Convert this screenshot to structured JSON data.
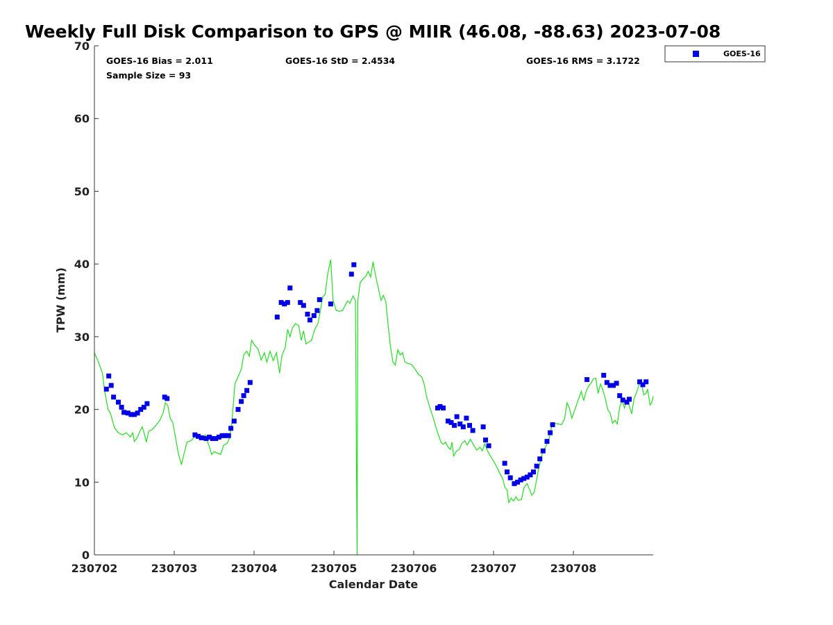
{
  "chart_data": {
    "type": "scatter",
    "title": "Weekly Full Disk Comparison to GPS @ MIIR (46.08, -88.63) 2023-07-08",
    "xlabel": "Calendar Date",
    "ylabel": "TPW (mm)",
    "xlim": [
      0,
      7
    ],
    "ylim": [
      0,
      70
    ],
    "xticks": [
      0,
      1,
      2,
      3,
      4,
      5,
      6
    ],
    "xtick_labels": [
      "230702",
      "230703",
      "230704",
      "230705",
      "230706",
      "230707",
      "230708"
    ],
    "yticks": [
      0,
      10,
      20,
      30,
      40,
      50,
      60,
      70
    ],
    "ytick_labels": [
      "0",
      "10",
      "20",
      "30",
      "40",
      "50",
      "60",
      "70"
    ],
    "grid": false,
    "legend_position": "top-right",
    "stats": {
      "bias": "GOES-16 Bias = 2.011",
      "std": "GOES-16 StD = 2.4534",
      "rms": "GOES-16 RMS = 3.1722",
      "sample_size": "Sample Size = 93"
    },
    "colors": {
      "goes16": "#0000e6",
      "gps": "#22dd22"
    },
    "series": [
      {
        "name": "GOES-16",
        "style": "square-markers",
        "points": [
          [
            0.15,
            22.8
          ],
          [
            0.18,
            24.6
          ],
          [
            0.21,
            23.3
          ],
          [
            0.24,
            21.7
          ],
          [
            0.3,
            21
          ],
          [
            0.34,
            20.3
          ],
          [
            0.37,
            19.6
          ],
          [
            0.42,
            19.5
          ],
          [
            0.46,
            19.3
          ],
          [
            0.5,
            19.3
          ],
          [
            0.54,
            19.5
          ],
          [
            0.58,
            20
          ],
          [
            0.62,
            20.3
          ],
          [
            0.66,
            20.8
          ],
          [
            0.88,
            21.7
          ],
          [
            0.91,
            21.5
          ],
          [
            1.26,
            16.5
          ],
          [
            1.3,
            16.3
          ],
          [
            1.34,
            16.1
          ],
          [
            1.4,
            16
          ],
          [
            1.44,
            16.2
          ],
          [
            1.48,
            16
          ],
          [
            1.52,
            16
          ],
          [
            1.56,
            16.2
          ],
          [
            1.6,
            16.4
          ],
          [
            1.64,
            16.4
          ],
          [
            1.68,
            16.4
          ],
          [
            1.71,
            17.4
          ],
          [
            1.75,
            18.4
          ],
          [
            1.8,
            20
          ],
          [
            1.84,
            21.1
          ],
          [
            1.87,
            21.9
          ],
          [
            1.91,
            22.6
          ],
          [
            1.95,
            23.7
          ],
          [
            2.29,
            32.7
          ],
          [
            2.34,
            34.7
          ],
          [
            2.38,
            34.5
          ],
          [
            2.42,
            34.7
          ],
          [
            2.45,
            36.7
          ],
          [
            2.58,
            34.7
          ],
          [
            2.62,
            34.3
          ],
          [
            2.67,
            33.1
          ],
          [
            2.7,
            32.3
          ],
          [
            2.75,
            32.9
          ],
          [
            2.79,
            33.6
          ],
          [
            2.82,
            35.1
          ],
          [
            2.96,
            34.5
          ],
          [
            3.22,
            38.6
          ],
          [
            3.25,
            39.9
          ],
          [
            4.3,
            20.2
          ],
          [
            4.33,
            20.4
          ],
          [
            4.37,
            20.2
          ],
          [
            4.43,
            18.4
          ],
          [
            4.47,
            18.2
          ],
          [
            4.51,
            17.8
          ],
          [
            4.54,
            19
          ],
          [
            4.58,
            18
          ],
          [
            4.62,
            17.6
          ],
          [
            4.66,
            18.8
          ],
          [
            4.7,
            17.8
          ],
          [
            4.74,
            17.1
          ],
          [
            4.87,
            17.6
          ],
          [
            4.9,
            15.8
          ],
          [
            4.94,
            15
          ],
          [
            5.14,
            12.6
          ],
          [
            5.17,
            11.4
          ],
          [
            5.21,
            10.6
          ],
          [
            5.26,
            9.8
          ],
          [
            5.3,
            10
          ],
          [
            5.34,
            10.3
          ],
          [
            5.38,
            10.5
          ],
          [
            5.42,
            10.7
          ],
          [
            5.46,
            11
          ],
          [
            5.5,
            11.4
          ],
          [
            5.54,
            12.2
          ],
          [
            5.58,
            13.2
          ],
          [
            5.62,
            14.3
          ],
          [
            5.67,
            15.6
          ],
          [
            5.71,
            16.8
          ],
          [
            5.74,
            17.9
          ],
          [
            6.17,
            24.1
          ],
          [
            6.38,
            24.7
          ],
          [
            6.42,
            23.7
          ],
          [
            6.46,
            23.3
          ],
          [
            6.5,
            23.3
          ],
          [
            6.54,
            23.6
          ],
          [
            6.58,
            21.9
          ],
          [
            6.62,
            21.3
          ],
          [
            6.67,
            21
          ],
          [
            6.7,
            21.4
          ],
          [
            6.83,
            23.8
          ],
          [
            6.87,
            23.4
          ],
          [
            6.91,
            23.8
          ]
        ]
      },
      {
        "style": "line",
        "points": [
          [
            0,
            27.8
          ],
          [
            0.05,
            26.5
          ],
          [
            0.1,
            25
          ],
          [
            0.13,
            22.5
          ],
          [
            0.17,
            20
          ],
          [
            0.2,
            19.5
          ],
          [
            0.25,
            17.5
          ],
          [
            0.3,
            16.8
          ],
          [
            0.35,
            16.5
          ],
          [
            0.4,
            16.8
          ],
          [
            0.45,
            16.2
          ],
          [
            0.48,
            16.8
          ],
          [
            0.5,
            15.6
          ],
          [
            0.53,
            16
          ],
          [
            0.57,
            17
          ],
          [
            0.6,
            17.6
          ],
          [
            0.63,
            16.5
          ],
          [
            0.65,
            15.5
          ],
          [
            0.68,
            17
          ],
          [
            0.72,
            17.2
          ],
          [
            0.77,
            17.8
          ],
          [
            0.82,
            18.5
          ],
          [
            0.86,
            19.5
          ],
          [
            0.89,
            20.9
          ],
          [
            0.92,
            20.5
          ],
          [
            0.95,
            18.7
          ],
          [
            0.98,
            18.3
          ],
          [
            1.01,
            16.5
          ],
          [
            1.05,
            14
          ],
          [
            1.09,
            12.4
          ],
          [
            1.12,
            13.8
          ],
          [
            1.16,
            15.5
          ],
          [
            1.21,
            15.7
          ],
          [
            1.26,
            16.3
          ],
          [
            1.31,
            16.5
          ],
          [
            1.35,
            16.2
          ],
          [
            1.39,
            16.5
          ],
          [
            1.43,
            15.2
          ],
          [
            1.47,
            13.8
          ],
          [
            1.5,
            14.2
          ],
          [
            1.54,
            14
          ],
          [
            1.58,
            13.8
          ],
          [
            1.62,
            15.1
          ],
          [
            1.66,
            15.3
          ],
          [
            1.69,
            16
          ],
          [
            1.72,
            18
          ],
          [
            1.76,
            23.5
          ],
          [
            1.8,
            24.5
          ],
          [
            1.84,
            25.5
          ],
          [
            1.87,
            27.5
          ],
          [
            1.91,
            28
          ],
          [
            1.94,
            27.3
          ],
          [
            1.97,
            29.5
          ],
          [
            2.01,
            28.8
          ],
          [
            2.05,
            28.3
          ],
          [
            2.09,
            26.8
          ],
          [
            2.13,
            27.8
          ],
          [
            2.16,
            26.5
          ],
          [
            2.2,
            28
          ],
          [
            2.24,
            26.7
          ],
          [
            2.28,
            27.8
          ],
          [
            2.32,
            25
          ],
          [
            2.35,
            27.5
          ],
          [
            2.39,
            28.5
          ],
          [
            2.42,
            31
          ],
          [
            2.45,
            30
          ],
          [
            2.48,
            31.2
          ],
          [
            2.52,
            31.8
          ],
          [
            2.56,
            31.5
          ],
          [
            2.59,
            29.5
          ],
          [
            2.62,
            30.8
          ],
          [
            2.65,
            29
          ],
          [
            2.69,
            29.3
          ],
          [
            2.72,
            29.5
          ],
          [
            2.76,
            31
          ],
          [
            2.8,
            31.8
          ],
          [
            2.83,
            33.5
          ],
          [
            2.86,
            35.5
          ],
          [
            2.89,
            35.8
          ],
          [
            2.92,
            38.5
          ],
          [
            2.96,
            40.6
          ],
          [
            2.99,
            35
          ],
          [
            3.03,
            33.6
          ],
          [
            3.07,
            33.5
          ],
          [
            3.11,
            33.6
          ],
          [
            3.14,
            34.3
          ],
          [
            3.17,
            34.9
          ],
          [
            3.2,
            34.6
          ],
          [
            3.24,
            35.6
          ],
          [
            3.27,
            35
          ],
          [
            3.29,
            0
          ],
          [
            3.3,
            35
          ],
          [
            3.33,
            37.5
          ],
          [
            3.37,
            38
          ],
          [
            3.4,
            38.3
          ],
          [
            3.43,
            39
          ],
          [
            3.46,
            38.2
          ],
          [
            3.49,
            40.3
          ],
          [
            3.52,
            38.5
          ],
          [
            3.56,
            36.5
          ],
          [
            3.59,
            35
          ],
          [
            3.62,
            35.7
          ],
          [
            3.65,
            34.8
          ],
          [
            3.68,
            31.5
          ],
          [
            3.71,
            28.5
          ],
          [
            3.74,
            26.5
          ],
          [
            3.77,
            26.1
          ],
          [
            3.8,
            28.2
          ],
          [
            3.83,
            27.5
          ],
          [
            3.86,
            27.8
          ],
          [
            3.89,
            26.5
          ],
          [
            3.93,
            26.3
          ],
          [
            3.97,
            26.2
          ],
          [
            4.02,
            25.5
          ],
          [
            4.06,
            24.8
          ],
          [
            4.1,
            24.5
          ],
          [
            4.13,
            23.5
          ],
          [
            4.16,
            21.8
          ],
          [
            4.2,
            20.3
          ],
          [
            4.24,
            19
          ],
          [
            4.28,
            17.5
          ],
          [
            4.31,
            16.5
          ],
          [
            4.34,
            15.5
          ],
          [
            4.37,
            15.2
          ],
          [
            4.4,
            15.5
          ],
          [
            4.43,
            14.8
          ],
          [
            4.46,
            14.5
          ],
          [
            4.48,
            15.5
          ],
          [
            4.5,
            13.6
          ],
          [
            4.53,
            14.2
          ],
          [
            4.57,
            14.5
          ],
          [
            4.6,
            15.3
          ],
          [
            4.64,
            15.7
          ],
          [
            4.67,
            15.1
          ],
          [
            4.71,
            15.9
          ],
          [
            4.75,
            15.1
          ],
          [
            4.79,
            14.4
          ],
          [
            4.83,
            14.8
          ],
          [
            4.86,
            14.3
          ],
          [
            4.89,
            15.3
          ],
          [
            4.92,
            14.4
          ],
          [
            4.96,
            13.6
          ],
          [
            5.0,
            12.9
          ],
          [
            5.04,
            12.1
          ],
          [
            5.08,
            11.2
          ],
          [
            5.12,
            10.3
          ],
          [
            5.14,
            9.3
          ],
          [
            5.17,
            8.9
          ],
          [
            5.19,
            7.2
          ],
          [
            5.22,
            7.8
          ],
          [
            5.25,
            7.4
          ],
          [
            5.28,
            8
          ],
          [
            5.31,
            7.5
          ],
          [
            5.35,
            7.6
          ],
          [
            5.38,
            9.2
          ],
          [
            5.42,
            9.8
          ],
          [
            5.45,
            9
          ],
          [
            5.48,
            8.2
          ],
          [
            5.51,
            8.6
          ],
          [
            5.55,
            11
          ],
          [
            5.58,
            12.6
          ],
          [
            5.62,
            14.3
          ],
          [
            5.66,
            15
          ],
          [
            5.7,
            16.2
          ],
          [
            5.73,
            17.8
          ],
          [
            5.77,
            18.1
          ],
          [
            5.81,
            18
          ],
          [
            5.85,
            17.9
          ],
          [
            5.89,
            18.7
          ],
          [
            5.92,
            20.9
          ],
          [
            5.95,
            20.2
          ],
          [
            5.98,
            18.8
          ],
          [
            6.02,
            20
          ],
          [
            6.06,
            21.3
          ],
          [
            6.1,
            22.5
          ],
          [
            6.13,
            21.2
          ],
          [
            6.16,
            22.5
          ],
          [
            6.19,
            23.2
          ],
          [
            6.22,
            23.6
          ],
          [
            6.25,
            24.2
          ],
          [
            6.28,
            24.3
          ],
          [
            6.31,
            22.2
          ],
          [
            6.34,
            23.5
          ],
          [
            6.37,
            22.6
          ],
          [
            6.4,
            21.5
          ],
          [
            6.43,
            20
          ],
          [
            6.46,
            19.5
          ],
          [
            6.49,
            18.1
          ],
          [
            6.52,
            18.5
          ],
          [
            6.55,
            18
          ],
          [
            6.58,
            20.3
          ],
          [
            6.61,
            21.3
          ],
          [
            6.64,
            20.2
          ],
          [
            6.67,
            21.2
          ],
          [
            6.7,
            20.5
          ],
          [
            6.73,
            19.4
          ],
          [
            6.76,
            21.5
          ],
          [
            6.79,
            22.3
          ],
          [
            6.82,
            23.3
          ],
          [
            6.85,
            23.9
          ],
          [
            6.88,
            22
          ],
          [
            6.91,
            22.2
          ],
          [
            6.93,
            22.8
          ],
          [
            6.96,
            20.6
          ],
          [
            6.98,
            20.9
          ],
          [
            7.0,
            21.8
          ]
        ]
      }
    ]
  }
}
